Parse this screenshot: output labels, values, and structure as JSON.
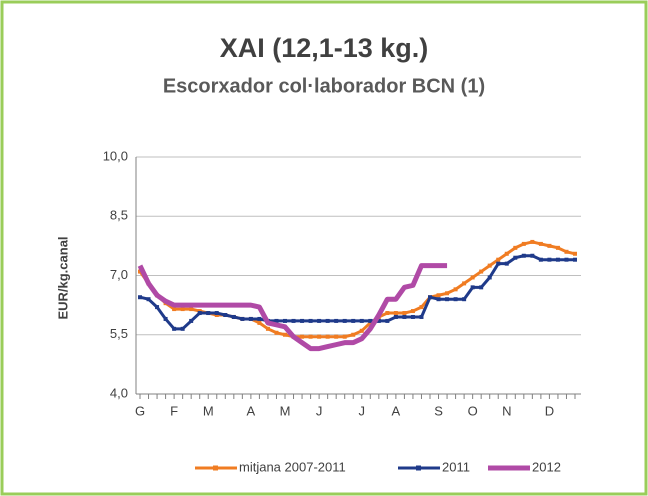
{
  "chart_data": {
    "type": "line",
    "title": "XAI (12,1-13 kg.)",
    "subtitle": "Escorxador col·laborador BCN (1)",
    "y_label": "EUR/kg.canal",
    "categories": [
      "G",
      null,
      null,
      null,
      "F",
      null,
      null,
      null,
      "M",
      null,
      null,
      null,
      null,
      "A",
      null,
      null,
      null,
      "M",
      null,
      null,
      null,
      "J",
      null,
      null,
      null,
      null,
      "J",
      null,
      null,
      null,
      "A",
      null,
      null,
      null,
      null,
      "S",
      null,
      null,
      null,
      "O",
      null,
      null,
      null,
      "N",
      null,
      null,
      null,
      null,
      "D",
      null,
      null,
      null
    ],
    "ylim": [
      4.0,
      10.0
    ],
    "yticks": [
      {
        "value": 4.0,
        "label": "4,0"
      },
      {
        "value": 5.5,
        "label": "5,5"
      },
      {
        "value": 7.0,
        "label": "7,0"
      },
      {
        "value": 8.5,
        "label": "8,5"
      },
      {
        "value": 10.0,
        "label": "10,0"
      }
    ],
    "grid": true,
    "legend": "bottom",
    "series": [
      {
        "name": "mitjana 2007-2011",
        "color": "#f07c22",
        "marker": true,
        "values": [
          7.1,
          6.8,
          6.5,
          6.3,
          6.15,
          6.15,
          6.15,
          6.1,
          6.05,
          6.0,
          6.0,
          5.95,
          5.9,
          5.9,
          5.8,
          5.65,
          5.55,
          5.5,
          5.45,
          5.45,
          5.45,
          5.45,
          5.45,
          5.45,
          5.45,
          5.5,
          5.6,
          5.8,
          5.95,
          6.05,
          6.05,
          6.05,
          6.1,
          6.2,
          6.45,
          6.5,
          6.55,
          6.65,
          6.8,
          6.95,
          7.1,
          7.25,
          7.4,
          7.55,
          7.7,
          7.8,
          7.85,
          7.8,
          7.75,
          7.7,
          7.6,
          7.55
        ]
      },
      {
        "name": "2011",
        "color": "#1f3a8a",
        "marker": true,
        "values": [
          6.45,
          6.4,
          6.2,
          5.9,
          5.65,
          5.65,
          5.85,
          6.05,
          6.05,
          6.05,
          6.0,
          5.95,
          5.9,
          5.9,
          5.9,
          5.85,
          5.85,
          5.85,
          5.85,
          5.85,
          5.85,
          5.85,
          5.85,
          5.85,
          5.85,
          5.85,
          5.85,
          5.85,
          5.85,
          5.85,
          5.95,
          5.95,
          5.95,
          5.95,
          6.45,
          6.4,
          6.4,
          6.4,
          6.4,
          6.7,
          6.7,
          6.95,
          7.3,
          7.3,
          7.45,
          7.5,
          7.5,
          7.4,
          7.4,
          7.4,
          7.4,
          7.4
        ]
      },
      {
        "name": "2012",
        "color": "#b04aa6",
        "marker": false,
        "values": [
          7.25,
          6.8,
          6.5,
          6.35,
          6.25,
          6.25,
          6.25,
          6.25,
          6.25,
          6.25,
          6.25,
          6.25,
          6.25,
          6.25,
          6.2,
          5.8,
          5.75,
          5.7,
          5.45,
          5.3,
          5.15,
          5.15,
          5.2,
          5.25,
          5.3,
          5.3,
          5.4,
          5.65,
          6.0,
          6.4,
          6.4,
          6.7,
          6.75,
          7.25,
          7.25,
          7.25,
          7.25,
          null,
          null,
          null,
          null,
          null,
          null,
          null,
          null,
          null,
          null,
          null,
          null,
          null,
          null,
          null
        ]
      }
    ]
  }
}
